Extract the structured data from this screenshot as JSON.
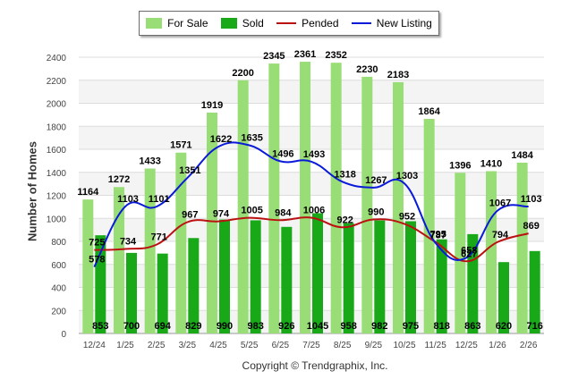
{
  "chart_data": {
    "type": "bar",
    "title": "",
    "xlabel": "",
    "ylabel": "Number of Homes",
    "ylim": [
      0,
      2400
    ],
    "yticks": [
      0,
      200,
      400,
      600,
      800,
      1000,
      1200,
      1400,
      1600,
      1800,
      2000,
      2200,
      2400
    ],
    "categories": [
      "12/24",
      "1/25",
      "2/25",
      "3/25",
      "4/25",
      "5/25",
      "6/25",
      "7/25",
      "8/25",
      "9/25",
      "10/25",
      "11/25",
      "12/25",
      "1/26",
      "2/26"
    ],
    "series": [
      {
        "name": "For Sale",
        "kind": "bar",
        "color": "#99dd77",
        "values": [
          1164,
          1272,
          1433,
          1571,
          1919,
          2200,
          2345,
          2361,
          2352,
          2230,
          2183,
          1864,
          1396,
          1410,
          1484
        ]
      },
      {
        "name": "Sold",
        "kind": "bar",
        "color": "#18a818",
        "values": [
          853,
          700,
          694,
          829,
          990,
          983,
          926,
          1045,
          958,
          982,
          975,
          818,
          863,
          620,
          716
        ]
      },
      {
        "name": "Pended",
        "kind": "line",
        "color": "#bb1111",
        "values": [
          725,
          734,
          771,
          967,
          974,
          1005,
          984,
          1006,
          922,
          990,
          952,
          795,
          627,
          794,
          869
        ]
      },
      {
        "name": "New Listing",
        "kind": "line",
        "color": "#0a1ad8",
        "values": [
          578,
          1103,
          1101,
          1351,
          1622,
          1635,
          1496,
          1493,
          1318,
          1267,
          1303,
          787,
          658,
          1067,
          1103
        ]
      }
    ],
    "legend": "top-center",
    "grid": true
  },
  "footer": {
    "copyright": "Copyright © Trendgraphix, Inc."
  }
}
